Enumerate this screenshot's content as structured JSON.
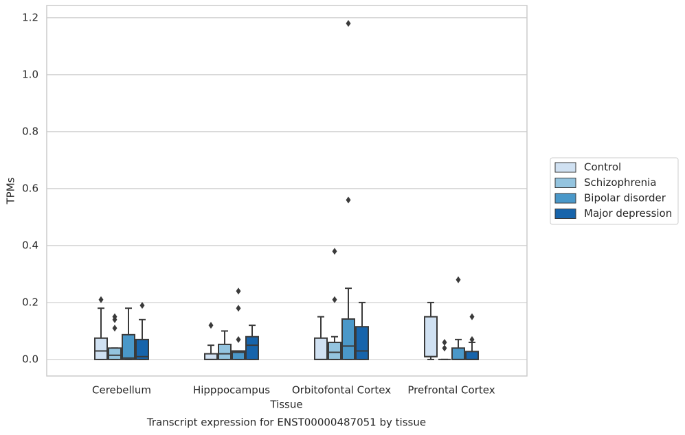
{
  "chart_data": {
    "type": "box",
    "title": "Transcript expression for ENST00000487051 by tissue",
    "x_label": "Tissue",
    "y_label": "TPMs",
    "categories": [
      "Cerebellum",
      "Hipppocampus",
      "Orbitofontal Cortex",
      "Prefrontal Cortex"
    ],
    "ylim": [
      -0.058,
      1.243
    ],
    "yticks": [
      {
        "value": 0,
        "label": "0.0"
      },
      0.2,
      0.4,
      0.6,
      0.8,
      {
        "value": 1,
        "label": "1.0"
      },
      1.2
    ],
    "grid": true,
    "legend": "right",
    "series": [
      {
        "name": "Control",
        "color": "#d0e1f2",
        "values": [
          {
            "min": 0,
            "q1": 0,
            "median": 0.03,
            "q3": 0.075,
            "max": 0.18,
            "outliers": [
              0.21
            ]
          },
          {
            "min": 0,
            "q1": 0,
            "median": 0,
            "q3": 0.02,
            "max": 0.05,
            "outliers": [
              0.12
            ]
          },
          {
            "min": 0,
            "q1": 0,
            "median": 0,
            "q3": 0.075,
            "max": 0.15,
            "outliers": []
          },
          {
            "min": 0,
            "q1": 0.01,
            "median": 0.01,
            "q3": 0.15,
            "max": 0.2,
            "outliers": []
          }
        ]
      },
      {
        "name": "Schizophrenia",
        "color": "#94c4df",
        "values": [
          {
            "min": 0,
            "q1": 0,
            "median": 0.015,
            "q3": 0.04,
            "max": 0.04,
            "outliers": [
              0.15,
              0.14,
              0.11
            ]
          },
          {
            "min": 0,
            "q1": 0,
            "median": 0.02,
            "q3": 0.053,
            "max": 0.1,
            "outliers": []
          },
          {
            "min": 0,
            "q1": 0,
            "median": 0.025,
            "q3": 0.06,
            "max": 0.08,
            "outliers": [
              0.38,
              0.21
            ]
          },
          {
            "min": 0,
            "q1": 0,
            "median": 0,
            "q3": 0,
            "max": 0,
            "outliers": [
              0.06,
              0.04
            ]
          }
        ]
      },
      {
        "name": "Bipolar disorder",
        "color": "#4a98c9",
        "values": [
          {
            "min": 0,
            "q1": 0,
            "median": 0.005,
            "q3": 0.087,
            "max": 0.18,
            "outliers": []
          },
          {
            "min": 0,
            "q1": 0,
            "median": 0.025,
            "q3": 0.03,
            "max": 0.03,
            "outliers": [
              0.24,
              0.18,
              0.07
            ]
          },
          {
            "min": 0,
            "q1": 0,
            "median": 0.047,
            "q3": 0.142,
            "max": 0.25,
            "outliers": [
              1.18,
              0.56
            ]
          },
          {
            "min": 0,
            "q1": 0,
            "median": 0,
            "q3": 0.04,
            "max": 0.07,
            "outliers": [
              0.28
            ]
          }
        ]
      },
      {
        "name": "Major depression",
        "color": "#1764ab",
        "values": [
          {
            "min": 0,
            "q1": 0,
            "median": 0.01,
            "q3": 0.07,
            "max": 0.14,
            "outliers": [
              0.19
            ]
          },
          {
            "min": 0,
            "q1": 0,
            "median": 0.05,
            "q3": 0.08,
            "max": 0.12,
            "outliers": []
          },
          {
            "min": 0,
            "q1": 0,
            "median": 0.03,
            "q3": 0.115,
            "max": 0.2,
            "outliers": []
          },
          {
            "min": 0,
            "q1": 0,
            "median": 0,
            "q3": 0.028,
            "max": 0.06,
            "outliers": [
              0.15,
              0.07
            ]
          }
        ]
      }
    ]
  }
}
